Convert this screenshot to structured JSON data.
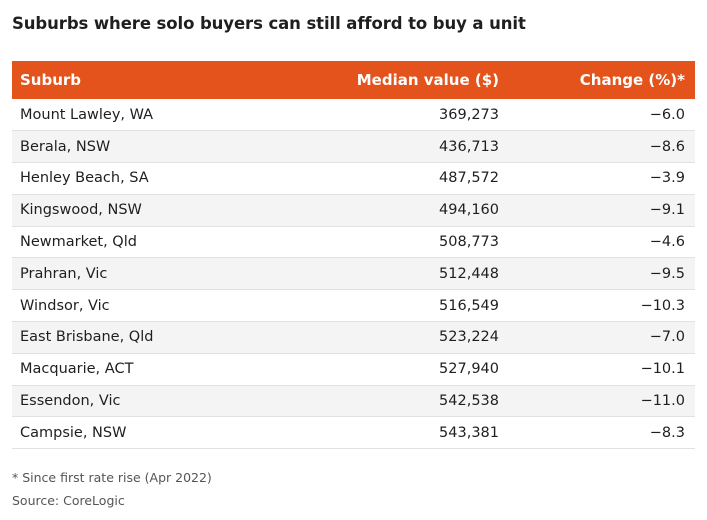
{
  "chart_data": {
    "type": "table",
    "title": "Suburbs where solo buyers can still afford to buy a unit",
    "columns": [
      "Suburb",
      "Median value ($)",
      "Change (%)*"
    ],
    "rows": [
      [
        "Mount Lawley, WA",
        "369,273",
        "−6.0"
      ],
      [
        "Berala, NSW",
        "436,713",
        "−8.6"
      ],
      [
        "Henley Beach, SA",
        "487,572",
        "−3.9"
      ],
      [
        "Kingswood, NSW",
        "494,160",
        "−9.1"
      ],
      [
        "Newmarket, Qld",
        "508,773",
        "−4.6"
      ],
      [
        "Prahran, Vic",
        "512,448",
        "−9.5"
      ],
      [
        "Windsor, Vic",
        "516,549",
        "−10.3"
      ],
      [
        "East Brisbane, Qld",
        "523,224",
        "−7.0"
      ],
      [
        "Macquarie, ACT",
        "527,940",
        "−10.1"
      ],
      [
        "Essendon, Vic",
        "542,538",
        "−11.0"
      ],
      [
        "Campsie, NSW",
        "543,381",
        "−8.3"
      ]
    ],
    "footnote": "* Since first rate rise (Apr 2022)",
    "source": "Source: CoreLogic"
  },
  "colors": {
    "header_background": "#e4531b",
    "header_text": "#ffffff",
    "row_alt_background": "#f4f4f4"
  }
}
